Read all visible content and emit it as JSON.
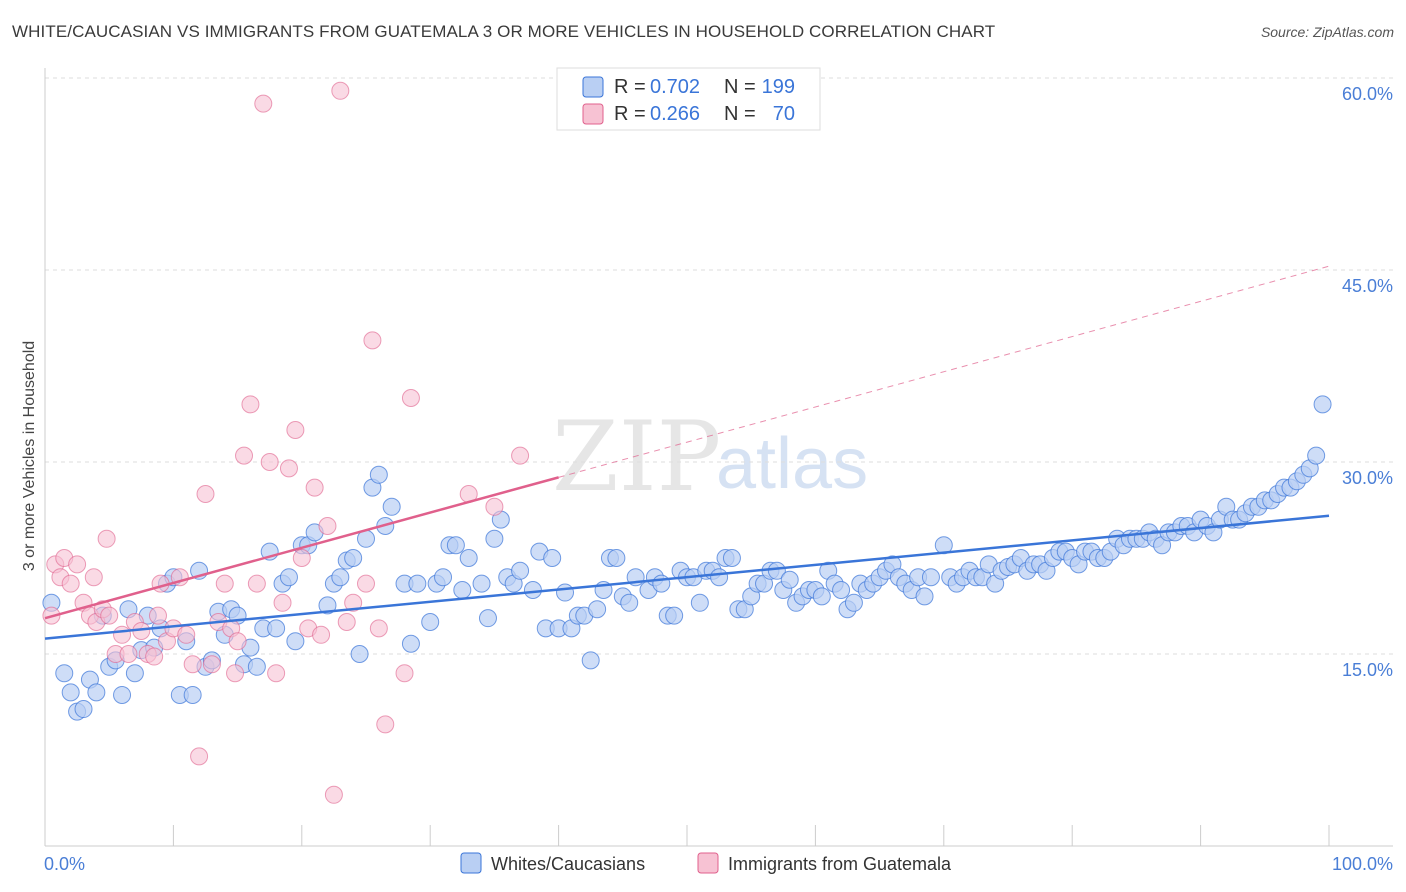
{
  "title": "WHITE/CAUCASIAN VS IMMIGRANTS FROM GUATEMALA 3 OR MORE VEHICLES IN HOUSEHOLD CORRELATION CHART",
  "source": "Source: ZipAtlas.com",
  "watermark": {
    "zip": "ZIP",
    "atlas": "atlas"
  },
  "colors": {
    "blue": "#3a75d8",
    "blue_fill": "#b9cff3",
    "pink": "#e0608c",
    "pink_fill": "#f7c2d3",
    "tick_text": "#4a7ed6",
    "grid": "#dddddd"
  },
  "legend": {
    "rows": [
      {
        "r_label": "R = ",
        "r_value": "0.702",
        "n_label": "N = ",
        "n_value": "199"
      },
      {
        "r_label": "R = ",
        "r_value": "0.266",
        "n_label": "N = ",
        "n_value": "70"
      }
    ]
  },
  "chart_data": {
    "type": "scatter",
    "xlabel": "",
    "ylabel": "3 or more Vehicles in Household",
    "xlim": [
      0,
      100
    ],
    "ylim": [
      0,
      60
    ],
    "x_tick_labels": [
      "0.0%",
      "100.0%"
    ],
    "y_tick_labels": [
      "15.0%",
      "30.0%",
      "45.0%",
      "60.0%"
    ],
    "y_ticks": [
      15,
      30,
      45,
      60
    ],
    "grid": true,
    "legend_placement": "top-center",
    "series": [
      {
        "name": "Whites/Caucasians",
        "color": "#3a75d8",
        "trend": {
          "x": [
            0,
            100
          ],
          "y": [
            16.2,
            25.8
          ],
          "style": "solid"
        },
        "points": [
          [
            0.5,
            19
          ],
          [
            1.5,
            13.5
          ],
          [
            2,
            12
          ],
          [
            2.5,
            10.5
          ],
          [
            3,
            10.7
          ],
          [
            3.5,
            13
          ],
          [
            4,
            12
          ],
          [
            4.5,
            18
          ],
          [
            5,
            14
          ],
          [
            5.5,
            14.5
          ],
          [
            6,
            11.8
          ],
          [
            6.5,
            18.5
          ],
          [
            7,
            13.5
          ],
          [
            7.5,
            15.3
          ],
          [
            8,
            18
          ],
          [
            8.5,
            15.5
          ],
          [
            9,
            17
          ],
          [
            9.5,
            20.5
          ],
          [
            10,
            21
          ],
          [
            10.5,
            11.8
          ],
          [
            11,
            16
          ],
          [
            11.5,
            11.8
          ],
          [
            12,
            21.5
          ],
          [
            12.5,
            14
          ],
          [
            13,
            14.5
          ],
          [
            13.5,
            18.3
          ],
          [
            14,
            16.5
          ],
          [
            14.5,
            18.5
          ],
          [
            15,
            18
          ],
          [
            15.5,
            14.2
          ],
          [
            16,
            15.5
          ],
          [
            16.5,
            14
          ],
          [
            17,
            17
          ],
          [
            17.5,
            23
          ],
          [
            18,
            17
          ],
          [
            18.5,
            20.5
          ],
          [
            19,
            21
          ],
          [
            19.5,
            16
          ],
          [
            20,
            23.5
          ],
          [
            20.5,
            23.5
          ],
          [
            21,
            24.5
          ],
          [
            22,
            18.8
          ],
          [
            22.5,
            20.5
          ],
          [
            23,
            21
          ],
          [
            23.5,
            22.3
          ],
          [
            24,
            22.5
          ],
          [
            24.5,
            15
          ],
          [
            25,
            24
          ],
          [
            25.5,
            28
          ],
          [
            26,
            29
          ],
          [
            26.5,
            25
          ],
          [
            27,
            26.5
          ],
          [
            28,
            20.5
          ],
          [
            28.5,
            15.8
          ],
          [
            29,
            20.5
          ],
          [
            30,
            17.5
          ],
          [
            30.5,
            20.5
          ],
          [
            31,
            21
          ],
          [
            31.5,
            23.5
          ],
          [
            32,
            23.5
          ],
          [
            32.5,
            20
          ],
          [
            33,
            22.5
          ],
          [
            34,
            20.5
          ],
          [
            34.5,
            17.8
          ],
          [
            35,
            24
          ],
          [
            35.5,
            25.5
          ],
          [
            36,
            21
          ],
          [
            36.5,
            20.5
          ],
          [
            37,
            21.5
          ],
          [
            38,
            20
          ],
          [
            38.5,
            23
          ],
          [
            39,
            17
          ],
          [
            39.5,
            22.5
          ],
          [
            40,
            17
          ],
          [
            40.5,
            19.8
          ],
          [
            41,
            17
          ],
          [
            41.5,
            18
          ],
          [
            42,
            18
          ],
          [
            42.5,
            14.5
          ],
          [
            43,
            18.5
          ],
          [
            43.5,
            20
          ],
          [
            44,
            22.5
          ],
          [
            44.5,
            22.5
          ],
          [
            45,
            19.5
          ],
          [
            45.5,
            19
          ],
          [
            46,
            21
          ],
          [
            47,
            20
          ],
          [
            47.5,
            21
          ],
          [
            48,
            20.5
          ],
          [
            48.5,
            18
          ],
          [
            49,
            18
          ],
          [
            49.5,
            21.5
          ],
          [
            50,
            21
          ],
          [
            50.5,
            21
          ],
          [
            51,
            19
          ],
          [
            51.5,
            21.5
          ],
          [
            52,
            21.5
          ],
          [
            52.5,
            21
          ],
          [
            53,
            22.5
          ],
          [
            53.5,
            22.5
          ],
          [
            54,
            18.5
          ],
          [
            54.5,
            18.5
          ],
          [
            55,
            19.5
          ],
          [
            55.5,
            20.5
          ],
          [
            56,
            20.5
          ],
          [
            56.5,
            21.5
          ],
          [
            57,
            21.5
          ],
          [
            57.5,
            20
          ],
          [
            58,
            20.8
          ],
          [
            58.5,
            19
          ],
          [
            59,
            19.5
          ],
          [
            59.5,
            20
          ],
          [
            60,
            20
          ],
          [
            60.5,
            19.5
          ],
          [
            61,
            21.5
          ],
          [
            61.5,
            20.5
          ],
          [
            62,
            20
          ],
          [
            62.5,
            18.5
          ],
          [
            63,
            19
          ],
          [
            63.5,
            20.5
          ],
          [
            64,
            20
          ],
          [
            64.5,
            20.5
          ],
          [
            65,
            21
          ],
          [
            65.5,
            21.5
          ],
          [
            66,
            22
          ],
          [
            66.5,
            21
          ],
          [
            67,
            20.5
          ],
          [
            67.5,
            20
          ],
          [
            68,
            21
          ],
          [
            68.5,
            19.5
          ],
          [
            69,
            21
          ],
          [
            70,
            23.5
          ],
          [
            70.5,
            21
          ],
          [
            71,
            20.5
          ],
          [
            71.5,
            21
          ],
          [
            72,
            21.5
          ],
          [
            72.5,
            21
          ],
          [
            73,
            21
          ],
          [
            73.5,
            22
          ],
          [
            74,
            20.5
          ],
          [
            74.5,
            21.5
          ],
          [
            75,
            21.8
          ],
          [
            75.5,
            22
          ],
          [
            76,
            22.5
          ],
          [
            76.5,
            21.5
          ],
          [
            77,
            22
          ],
          [
            77.5,
            22
          ],
          [
            78,
            21.5
          ],
          [
            78.5,
            22.5
          ],
          [
            79,
            23
          ],
          [
            79.5,
            23
          ],
          [
            80,
            22.5
          ],
          [
            80.5,
            22
          ],
          [
            81,
            23
          ],
          [
            81.5,
            23
          ],
          [
            82,
            22.5
          ],
          [
            82.5,
            22.5
          ],
          [
            83,
            23
          ],
          [
            83.5,
            24
          ],
          [
            84,
            23.5
          ],
          [
            84.5,
            24
          ],
          [
            85,
            24
          ],
          [
            85.5,
            24
          ],
          [
            86,
            24.5
          ],
          [
            86.5,
            24
          ],
          [
            87,
            23.5
          ],
          [
            87.5,
            24.5
          ],
          [
            88,
            24.5
          ],
          [
            88.5,
            25
          ],
          [
            89,
            25
          ],
          [
            89.5,
            24.5
          ],
          [
            90,
            25.5
          ],
          [
            90.5,
            25
          ],
          [
            91,
            24.5
          ],
          [
            91.5,
            25.5
          ],
          [
            92,
            26.5
          ],
          [
            92.5,
            25.5
          ],
          [
            93,
            25.5
          ],
          [
            93.5,
            26
          ],
          [
            94,
            26.5
          ],
          [
            94.5,
            26.5
          ],
          [
            95,
            27
          ],
          [
            95.5,
            27
          ],
          [
            96,
            27.5
          ],
          [
            96.5,
            28
          ],
          [
            97,
            28
          ],
          [
            97.5,
            28.5
          ],
          [
            98,
            29
          ],
          [
            98.5,
            29.5
          ],
          [
            99,
            30.5
          ],
          [
            99.5,
            34.5
          ]
        ]
      },
      {
        "name": "Immigrants from Guatemala",
        "color": "#e0608c",
        "trend_solid": {
          "x": [
            0,
            40
          ],
          "y": [
            17.8,
            28.8
          ],
          "style": "solid"
        },
        "trend_dashed": {
          "x": [
            40,
            100
          ],
          "y": [
            28.8,
            45.3
          ],
          "style": "dashed"
        },
        "points": [
          [
            0.5,
            18
          ],
          [
            0.8,
            22
          ],
          [
            1.2,
            21
          ],
          [
            1.5,
            22.5
          ],
          [
            2,
            20.5
          ],
          [
            2.5,
            22
          ],
          [
            3,
            19
          ],
          [
            3.5,
            18
          ],
          [
            3.8,
            21
          ],
          [
            4,
            17.5
          ],
          [
            4.5,
            18.5
          ],
          [
            4.8,
            24
          ],
          [
            5,
            18
          ],
          [
            5.5,
            15
          ],
          [
            6,
            16.5
          ],
          [
            6.5,
            15
          ],
          [
            7,
            17.5
          ],
          [
            7.5,
            16.8
          ],
          [
            8,
            15
          ],
          [
            8.5,
            14.8
          ],
          [
            8.8,
            18
          ],
          [
            9,
            20.5
          ],
          [
            9.5,
            16
          ],
          [
            10,
            17
          ],
          [
            10.5,
            21
          ],
          [
            11,
            16.5
          ],
          [
            11.5,
            14.2
          ],
          [
            12,
            7
          ],
          [
            12.5,
            27.5
          ],
          [
            13,
            14.2
          ],
          [
            13.5,
            17.5
          ],
          [
            14,
            20.5
          ],
          [
            14.5,
            17
          ],
          [
            14.8,
            13.5
          ],
          [
            15,
            16
          ],
          [
            15.5,
            30.5
          ],
          [
            16,
            34.5
          ],
          [
            16.5,
            20.5
          ],
          [
            17,
            58
          ],
          [
            17.5,
            30
          ],
          [
            18,
            13.5
          ],
          [
            18.5,
            19
          ],
          [
            19,
            29.5
          ],
          [
            19.5,
            32.5
          ],
          [
            20,
            22.5
          ],
          [
            20.5,
            17
          ],
          [
            21,
            28
          ],
          [
            21.5,
            16.5
          ],
          [
            22,
            25
          ],
          [
            22.5,
            4
          ],
          [
            23,
            59
          ],
          [
            23.5,
            17.5
          ],
          [
            24,
            19
          ],
          [
            25,
            20.5
          ],
          [
            25.5,
            39.5
          ],
          [
            26,
            17
          ],
          [
            26.5,
            9.5
          ],
          [
            28,
            13.5
          ],
          [
            28.5,
            35
          ],
          [
            33,
            27.5
          ],
          [
            35,
            26.5
          ],
          [
            37,
            30.5
          ]
        ]
      }
    ]
  },
  "bottom_legend": [
    {
      "label": "Whites/Caucasians"
    },
    {
      "label": "Immigrants from Guatemala"
    }
  ]
}
